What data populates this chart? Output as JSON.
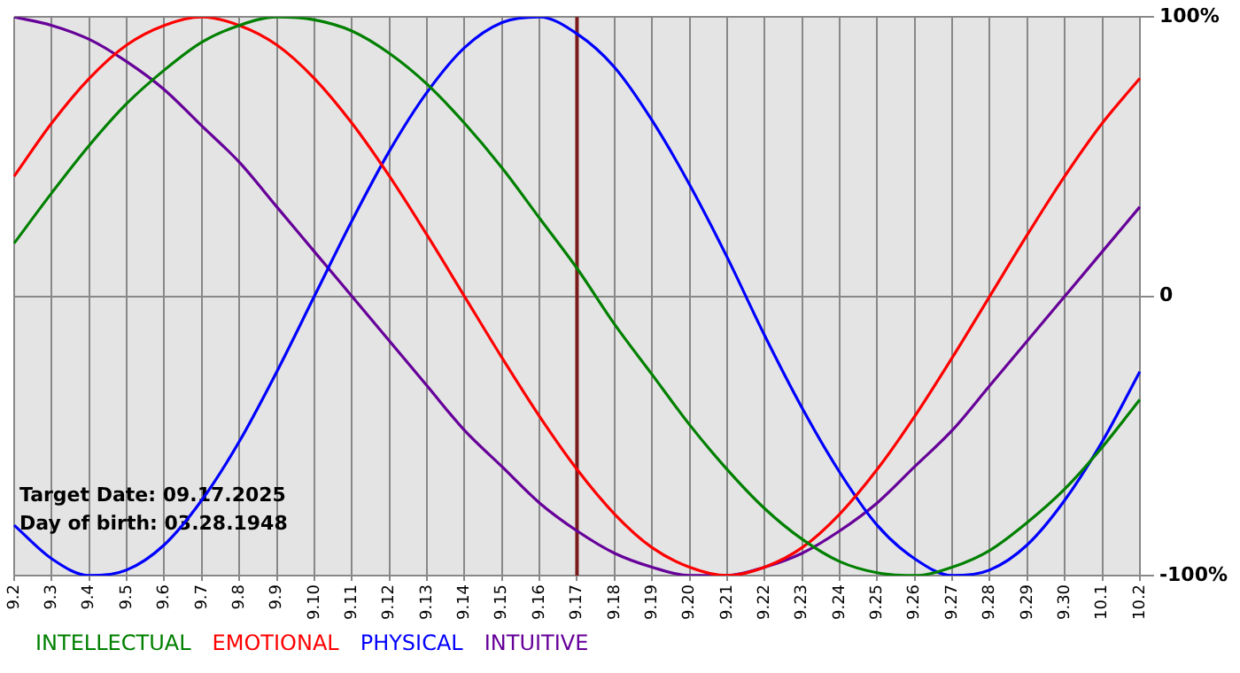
{
  "chart_data": {
    "type": "line",
    "categories": [
      "9.2",
      "9.3",
      "9.4",
      "9.5",
      "9.6",
      "9.7",
      "9.8",
      "9.9",
      "9.10",
      "9.11",
      "9.12",
      "9.13",
      "9.14",
      "9.15",
      "9.16",
      "9.17",
      "9.18",
      "9.19",
      "9.20",
      "9.21",
      "9.22",
      "9.23",
      "9.24",
      "9.25",
      "9.26",
      "9.27",
      "9.28",
      "9.29",
      "9.30",
      "10.1",
      "10.2"
    ],
    "series": [
      {
        "name": "INTELLECTUAL",
        "color": "#008000",
        "values": [
          19,
          37,
          54,
          69,
          81,
          91,
          97,
          100,
          99,
          95,
          87,
          76,
          62,
          46,
          28,
          10,
          -10,
          -28,
          -46,
          -62,
          -76,
          -87,
          -95,
          -99,
          -100,
          -97,
          -91,
          -81,
          -69,
          -54,
          -37
        ]
      },
      {
        "name": "EMOTIONAL",
        "color": "#ff0000",
        "values": [
          43,
          62,
          78,
          90,
          97,
          100,
          97,
          90,
          78,
          62,
          43,
          22,
          0,
          -22,
          -43,
          -62,
          -78,
          -90,
          -97,
          -100,
          -97,
          -90,
          -78,
          -62,
          -43,
          -22,
          0,
          22,
          43,
          62,
          78
        ]
      },
      {
        "name": "PHYSICAL",
        "color": "#0000ff",
        "values": [
          -82,
          -94,
          -100,
          -98,
          -89,
          -73,
          -52,
          -27,
          0,
          27,
          52,
          73,
          89,
          98,
          100,
          94,
          82,
          63,
          40,
          14,
          -14,
          -40,
          -63,
          -82,
          -94,
          -100,
          -98,
          -89,
          -73,
          -52,
          -27
        ]
      },
      {
        "name": "INTUITIVE",
        "color": "#660099",
        "values": [
          100,
          97,
          92,
          84,
          74,
          61,
          48,
          32,
          16,
          0,
          -16,
          -32,
          -48,
          -61,
          -74,
          -84,
          -92,
          -97,
          -100,
          -100,
          -97,
          -92,
          -84,
          -74,
          -61,
          -48,
          -32,
          -16,
          0,
          16,
          32
        ]
      }
    ],
    "ylim": [
      -100,
      100
    ],
    "yticks": [
      {
        "value": -100,
        "label": "-100%"
      },
      0,
      {
        "value": 100,
        "label": "100%"
      }
    ],
    "ref_lines": [
      {
        "axis": "x",
        "value": "9.17",
        "color": "#7a1a1a"
      }
    ],
    "annotations": [
      "Target Date: 09.17.2025",
      "Day of birth: 03.28.1948"
    ],
    "grid": true,
    "legend": "bottom left",
    "marker": "none",
    "line_style": "solid"
  }
}
